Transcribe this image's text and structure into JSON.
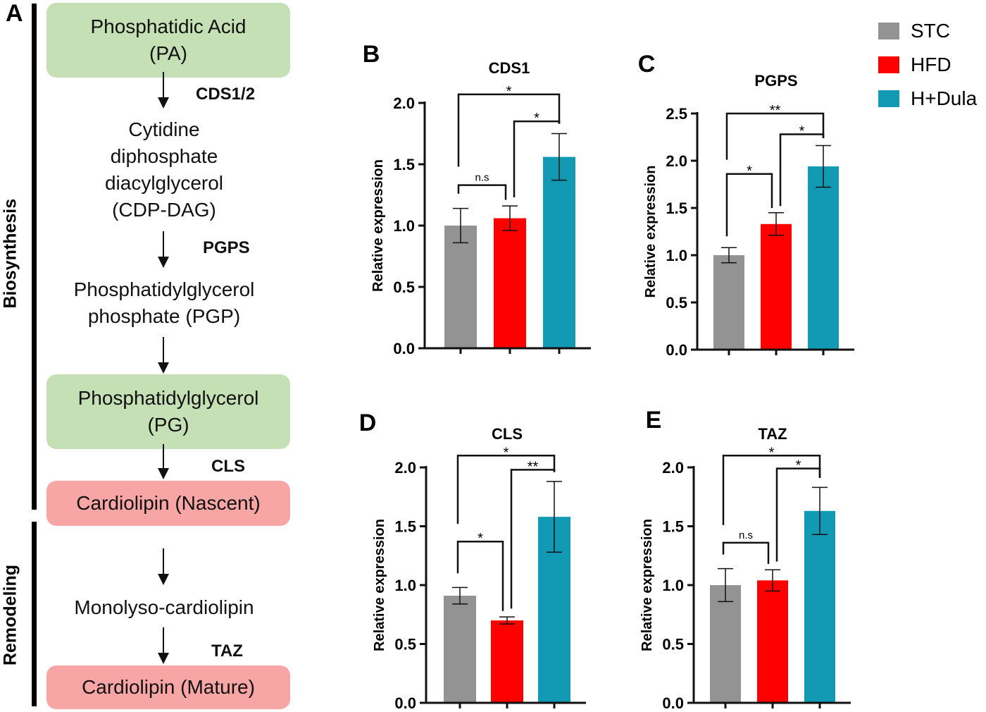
{
  "panel_a": {
    "letter": "A",
    "side_labels": {
      "biosynthesis": "Biosynthesis",
      "remodeling": "Remodeling"
    },
    "nodes": {
      "pa": "Phosphatidic Acid\n(PA)",
      "cdp": "Cytidine\ndiphosphate\ndiacylglycerol\n(CDP-DAG)",
      "pgp": "Phosphatidylglycerol\nphosphate (PGP)",
      "pg": "Phosphatidylglycerol\n(PG)",
      "cl_nascent": "Cardiolipin (Nascent)",
      "mlcl": "Monolyso-cardiolipin",
      "cl_mature": "Cardiolipin (Mature)"
    },
    "enzymes": {
      "cds": "CDS1/2",
      "pgps": "PGPS",
      "cls": "CLS",
      "taz": "TAZ"
    }
  },
  "legend": [
    {
      "label": "STC",
      "color": "#939393"
    },
    {
      "label": "HFD",
      "color": "#ff0000"
    },
    {
      "label": "H+Dula",
      "color": "#129ab4"
    }
  ],
  "chart_data": [
    {
      "type": "bar",
      "letter": "B",
      "title": "CDS1",
      "ylabel": "Relative expression",
      "ylim": [
        0,
        2.0
      ],
      "yticks": [
        "0.0",
        "0.5",
        "1.0",
        "1.5",
        "2.0"
      ],
      "categories": [
        "STC",
        "HFD",
        "H+Dula"
      ],
      "values": [
        1.0,
        1.06,
        1.56
      ],
      "errors": [
        0.14,
        0.1,
        0.19
      ],
      "comparisons": [
        {
          "pair": [
            0,
            1
          ],
          "label": "n.s"
        },
        {
          "pair": [
            1,
            2
          ],
          "label": "*"
        },
        {
          "pair": [
            0,
            2
          ],
          "label": "*"
        }
      ]
    },
    {
      "type": "bar",
      "letter": "C",
      "title": "PGPS",
      "ylabel": "Relative expression",
      "ylim": [
        0,
        2.5
      ],
      "yticks": [
        "0.0",
        "0.5",
        "1.0",
        "1.5",
        "2.0",
        "2.5"
      ],
      "categories": [
        "STC",
        "HFD",
        "H+Dula"
      ],
      "values": [
        1.0,
        1.33,
        1.94
      ],
      "errors": [
        0.08,
        0.12,
        0.22
      ],
      "comparisons": [
        {
          "pair": [
            0,
            1
          ],
          "label": "*"
        },
        {
          "pair": [
            1,
            2
          ],
          "label": "*"
        },
        {
          "pair": [
            0,
            2
          ],
          "label": "**"
        }
      ]
    },
    {
      "type": "bar",
      "letter": "D",
      "title": "CLS",
      "ylabel": "Relative expression",
      "ylim": [
        0,
        2.0
      ],
      "yticks": [
        "0.0",
        "0.5",
        "1.0",
        "1.5",
        "2.0"
      ],
      "categories": [
        "STC",
        "HFD",
        "H+Dula"
      ],
      "values": [
        0.91,
        0.7,
        1.58
      ],
      "errors": [
        0.07,
        0.03,
        0.3
      ],
      "comparisons": [
        {
          "pair": [
            0,
            1
          ],
          "label": "*"
        },
        {
          "pair": [
            1,
            2
          ],
          "label": "**"
        },
        {
          "pair": [
            0,
            2
          ],
          "label": "*"
        }
      ]
    },
    {
      "type": "bar",
      "letter": "E",
      "title": "TAZ",
      "ylabel": "Relative expression",
      "ylim": [
        0,
        2.0
      ],
      "yticks": [
        "0.0",
        "0.5",
        "1.0",
        "1.5",
        "2.0"
      ],
      "categories": [
        "STC",
        "HFD",
        "H+Dula"
      ],
      "values": [
        1.0,
        1.04,
        1.63
      ],
      "errors": [
        0.14,
        0.09,
        0.2
      ],
      "comparisons": [
        {
          "pair": [
            0,
            1
          ],
          "label": "n.s"
        },
        {
          "pair": [
            1,
            2
          ],
          "label": "*"
        },
        {
          "pair": [
            0,
            2
          ],
          "label": "*"
        }
      ]
    }
  ]
}
